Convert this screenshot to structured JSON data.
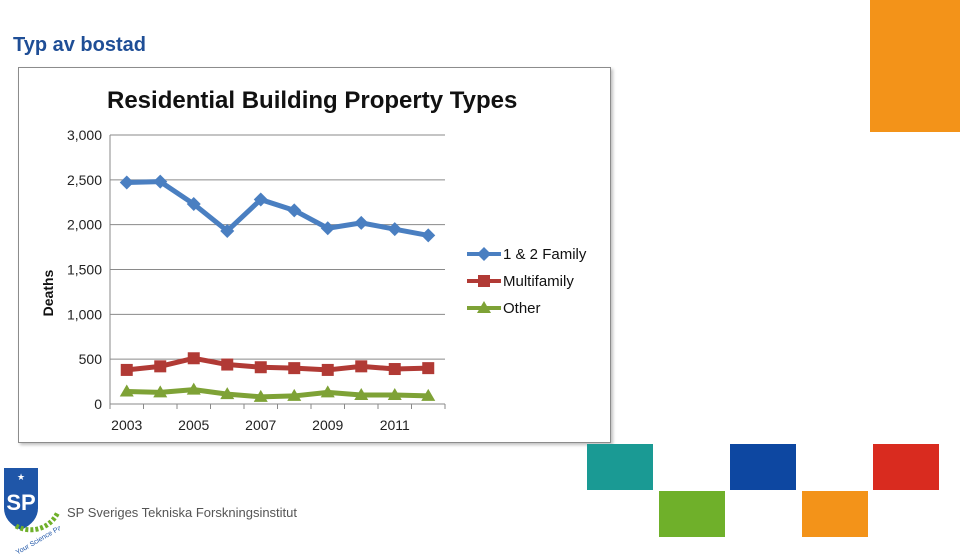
{
  "slide": {
    "title": "Typ av bostad",
    "org_name": "SP Sveriges Tekniska Forskningsinstitut",
    "logo_text": "SP",
    "logo_tagline": "Your Science Partner"
  },
  "colors": {
    "title": "#1f4e96",
    "deco_orange": "#f39319",
    "deco_teal": "#1a9a94",
    "deco_blue": "#0d47a1",
    "deco_red": "#d92b1f",
    "deco_green": "#6fb02a",
    "logo_blue": "#1f56a8",
    "logo_green": "#6fb02a"
  },
  "chart_data": {
    "type": "line",
    "title": "Residential Building Property Types",
    "xlabel": "",
    "ylabel": "Deaths",
    "x": [
      2003,
      2004,
      2005,
      2006,
      2007,
      2008,
      2009,
      2010,
      2011,
      2012
    ],
    "x_tick_labels": [
      "2003",
      "2005",
      "2007",
      "2009",
      "2011"
    ],
    "y_tick_labels": [
      "0",
      "500",
      "1,000",
      "1,500",
      "2,000",
      "2,500",
      "3,000"
    ],
    "ylim": [
      0,
      3000
    ],
    "grid": "horizontal",
    "legend_position": "right",
    "series": [
      {
        "name": "1 & 2 Family",
        "color": "#4a7fc1",
        "marker": "diamond",
        "values": [
          2470,
          2480,
          2230,
          1930,
          2280,
          2160,
          1960,
          2020,
          1950,
          1880
        ]
      },
      {
        "name": "Multifamily",
        "color": "#b13a35",
        "marker": "square",
        "values": [
          380,
          420,
          510,
          440,
          410,
          400,
          380,
          420,
          390,
          400
        ]
      },
      {
        "name": "Other",
        "color": "#7ea236",
        "marker": "triangle",
        "values": [
          140,
          130,
          160,
          110,
          80,
          90,
          130,
          100,
          100,
          90
        ]
      }
    ]
  }
}
